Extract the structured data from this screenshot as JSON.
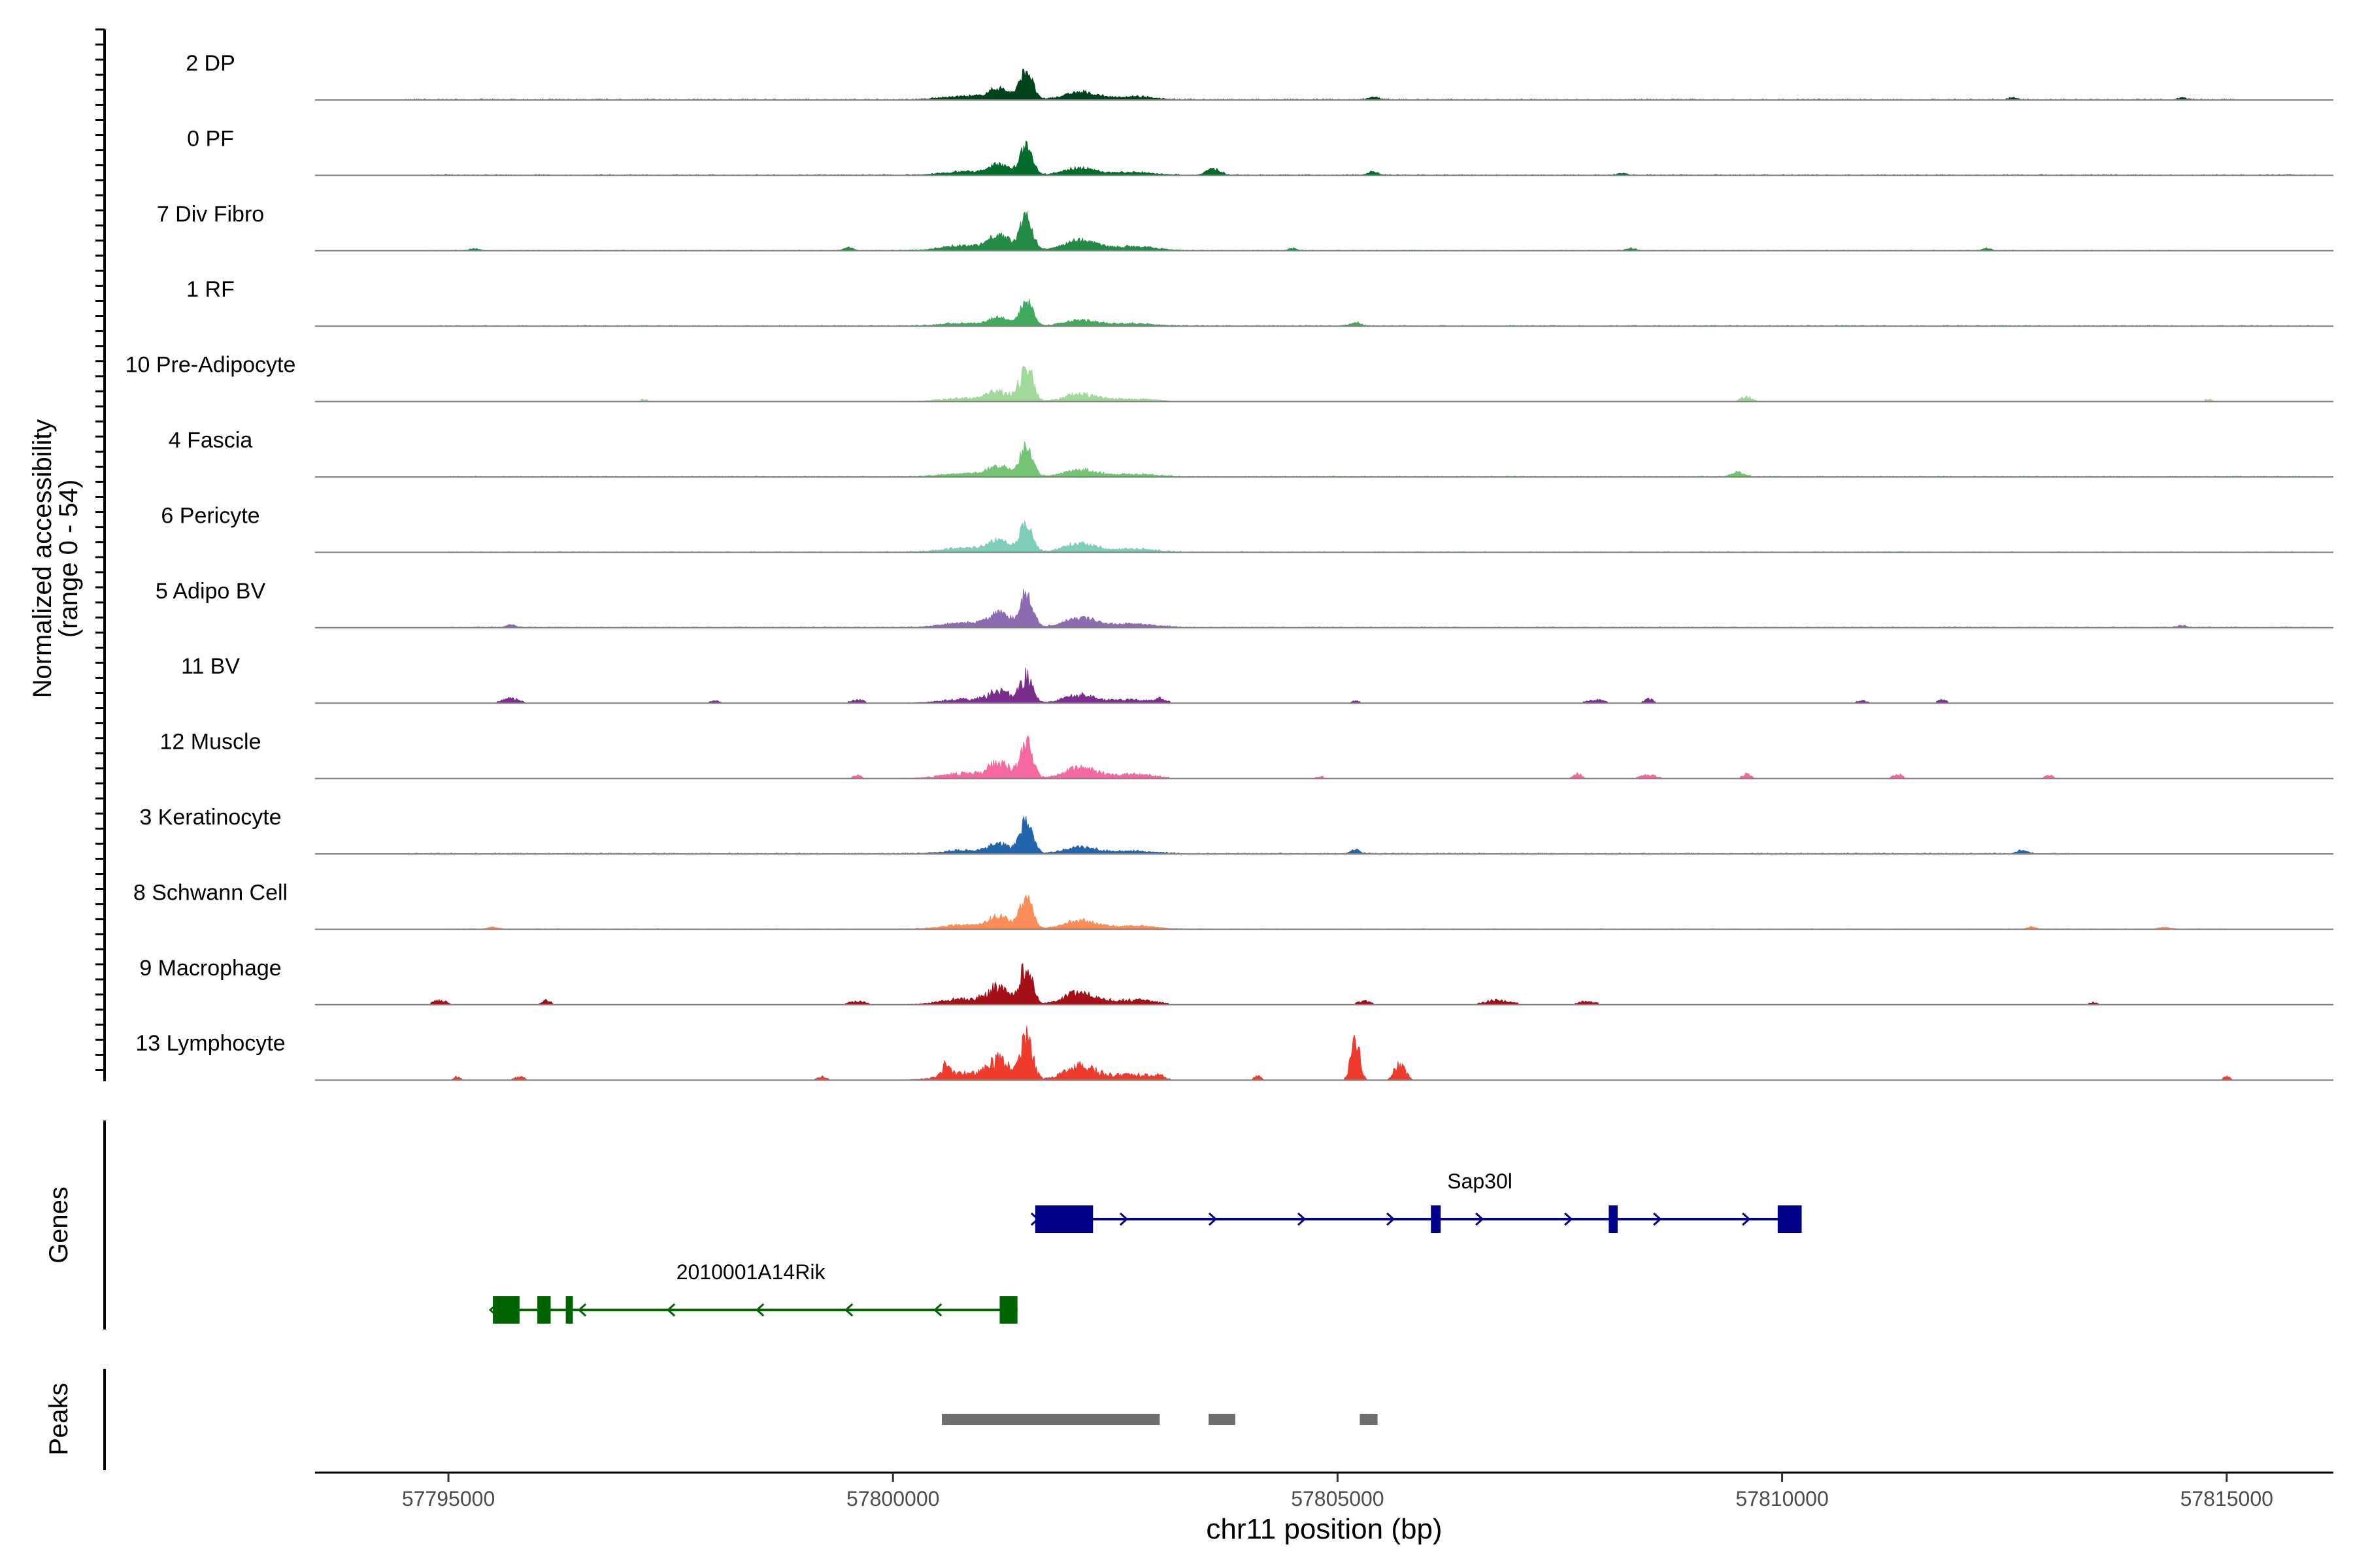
{
  "chart_data": {
    "type": "area",
    "region": {
      "chrom": "chr11",
      "start": 57793500,
      "end": 57816200
    },
    "y_axis_label": {
      "line1": "Normalized accessibility",
      "line2": "(range 0 - 54)"
    },
    "ylim": [
      0,
      54
    ],
    "x_axis": {
      "label": "chr11 position (bp)",
      "ticks": [
        {
          "value": 57795000,
          "label": "57795000"
        },
        {
          "value": 57800000,
          "label": "57800000"
        },
        {
          "value": 57805000,
          "label": "57805000"
        },
        {
          "value": 57810000,
          "label": "57810000"
        },
        {
          "value": 57815000,
          "label": "57815000"
        }
      ]
    },
    "tracks": [
      {
        "name": "2 DP",
        "color": "#00441b",
        "peak_height": 27,
        "baseline": 0.3,
        "hump_scale": 1.0,
        "sparse": false,
        "extras": [
          [
            57793500,
            57815100,
            0.3,
            0
          ],
          [
            57805400,
            120,
            2.5,
            0
          ],
          [
            57812600,
            100,
            2.0,
            0
          ],
          [
            57814500,
            100,
            2.0,
            0
          ]
        ],
        "lo": 57794500,
        "hi": 57815100
      },
      {
        "name": "0 PF",
        "color": "#006d2c",
        "peak_height": 26,
        "baseline": 0.3,
        "hump_scale": 1.0,
        "sparse": false,
        "extras": [
          [
            57803600,
            150,
            6,
            0
          ],
          [
            57805400,
            120,
            3,
            0
          ],
          [
            57808200,
            100,
            2,
            0
          ]
        ],
        "lo": 57794800,
        "hi": 57816000
      },
      {
        "name": "7 Div Fibro",
        "color": "#238b45",
        "peak_height": 30,
        "baseline": 0.2,
        "hump_scale": 1.3,
        "sparse": false,
        "extras": [
          [
            57795300,
            100,
            2,
            0
          ],
          [
            57799500,
            100,
            3,
            0
          ],
          [
            57804500,
            100,
            2,
            0
          ],
          [
            57808300,
            100,
            2,
            0
          ],
          [
            57812300,
            100,
            2,
            0
          ]
        ],
        "lo": 57794800,
        "hi": 57814800
      },
      {
        "name": "1 RF",
        "color": "#41ab5d",
        "peak_height": 23,
        "baseline": 0.3,
        "hump_scale": 0.9,
        "sparse": false,
        "extras": [
          [
            57805200,
            120,
            3,
            0
          ]
        ],
        "lo": 57794800,
        "hi": 57816000
      },
      {
        "name": "10 Pre-Adipocyte",
        "color": "#a1d99b",
        "peak_height": 32,
        "baseline": 0.15,
        "hump_scale": 0.8,
        "sparse": true,
        "extras": [
          [
            57797200,
            80,
            2,
            0
          ],
          [
            57809600,
            150,
            4,
            0
          ],
          [
            57814800,
            100,
            2,
            0
          ]
        ],
        "lo": 57797000,
        "hi": 57815000
      },
      {
        "name": "4 Fascia",
        "color": "#74c476",
        "peak_height": 28,
        "baseline": 0.3,
        "hump_scale": 0.9,
        "sparse": false,
        "extras": [
          [
            57809500,
            150,
            4,
            0
          ]
        ],
        "lo": 57795000,
        "hi": 57816000
      },
      {
        "name": "6 Pericyte",
        "color": "#7fcdbb",
        "peak_height": 26,
        "baseline": 0.3,
        "hump_scale": 1.2,
        "sparse": false,
        "extras": [],
        "lo": 57795000,
        "hi": 57816000
      },
      {
        "name": "5 Adipo BV",
        "color": "#8c6bb1",
        "peak_height": 32,
        "baseline": 0.3,
        "hump_scale": 1.1,
        "sparse": false,
        "extras": [
          [
            57795700,
            100,
            3,
            0
          ],
          [
            57814500,
            100,
            2,
            0
          ]
        ],
        "lo": 57795000,
        "hi": 57816000
      },
      {
        "name": "11 BV",
        "color": "#7b2d8d",
        "peak_height": 24,
        "baseline": 0.0,
        "hump_scale": 1.2,
        "sparse": true,
        "extras": [
          [
            57795700,
            200,
            4,
            1
          ],
          [
            57798000,
            120,
            2,
            1
          ],
          [
            57799600,
            150,
            3,
            1
          ],
          [
            57803000,
            120,
            3,
            1
          ],
          [
            57805200,
            100,
            2,
            1
          ],
          [
            57807900,
            200,
            3,
            1
          ],
          [
            57808500,
            100,
            4,
            1
          ],
          [
            57810900,
            150,
            2,
            1
          ],
          [
            57811800,
            100,
            3,
            1
          ]
        ],
        "lo": 57795000,
        "hi": 57812000
      },
      {
        "name": "12 Muscle",
        "color": "#f768a1",
        "peak_height": 30,
        "baseline": 0.0,
        "hump_scale": 1.3,
        "sparse": true,
        "extras": [
          [
            57799600,
            100,
            3,
            1
          ],
          [
            57804800,
            100,
            2,
            1
          ],
          [
            57807700,
            100,
            4,
            1
          ],
          [
            57808500,
            200,
            3,
            1
          ],
          [
            57809600,
            100,
            4,
            1
          ],
          [
            57811300,
            100,
            4,
            1
          ],
          [
            57813000,
            100,
            3,
            1
          ]
        ],
        "lo": 57799500,
        "hi": 57813200
      },
      {
        "name": "3 Keratinocyte",
        "color": "#2166ac",
        "peak_height": 30,
        "baseline": 0.3,
        "hump_scale": 0.8,
        "sparse": false,
        "extras": [
          [
            57805200,
            100,
            4,
            0
          ],
          [
            57812700,
            120,
            3,
            0
          ]
        ],
        "lo": 57794500,
        "hi": 57813300
      },
      {
        "name": "8 Schwann Cell",
        "color": "#fc8d59",
        "peak_height": 29,
        "baseline": 0.2,
        "hump_scale": 1.1,
        "sparse": false,
        "extras": [
          [
            57795500,
            100,
            2,
            0
          ],
          [
            57812800,
            100,
            2,
            0
          ],
          [
            57814300,
            120,
            2,
            0
          ]
        ],
        "lo": 57795000,
        "hi": 57815000
      },
      {
        "name": "9 Macrophage",
        "color": "#a50f15",
        "peak_height": 34,
        "baseline": 0.0,
        "hump_scale": 1.3,
        "sparse": true,
        "extras": [
          [
            57794900,
            150,
            4,
            1
          ],
          [
            57796100,
            100,
            4,
            1
          ],
          [
            57799600,
            200,
            3,
            1
          ],
          [
            57805300,
            150,
            3,
            1
          ],
          [
            57806800,
            300,
            4,
            1
          ],
          [
            57807800,
            200,
            3,
            1
          ],
          [
            57813500,
            120,
            2,
            1
          ]
        ],
        "lo": 57794800,
        "hi": 57813600
      },
      {
        "name": "13 Lymphocyte",
        "color": "#ef3b2c",
        "peak_height": 36,
        "baseline": 0.0,
        "hump_scale": 1.4,
        "sparse": true,
        "extras": [
          [
            57795100,
            80,
            3,
            1
          ],
          [
            57795800,
            120,
            3,
            1
          ],
          [
            57799200,
            120,
            3,
            1
          ],
          [
            57800600,
            80,
            12,
            1
          ],
          [
            57803000,
            60,
            4,
            1
          ],
          [
            57804100,
            80,
            4,
            1
          ],
          [
            57805200,
            100,
            36,
            1
          ],
          [
            57805700,
            120,
            16,
            1
          ],
          [
            57815000,
            80,
            3,
            1
          ]
        ],
        "lo": 57795000,
        "hi": 57815100
      }
    ],
    "genes_track_label": "Genes",
    "genes": [
      {
        "name": "Sap30l",
        "strand": "+",
        "color": "#00008b",
        "start": 57801600,
        "end": 57810200,
        "exons": [
          [
            57801600,
            57802250
          ],
          [
            57806050,
            57806160
          ],
          [
            57808050,
            57808150
          ],
          [
            57809950,
            57810220
          ]
        ]
      },
      {
        "name": "2010001A14Rik",
        "strand": "-",
        "color": "#006400",
        "start": 57795500,
        "end": 57801400,
        "exons": [
          [
            57795500,
            57795800
          ],
          [
            57796000,
            57796150
          ],
          [
            57796320,
            57796400
          ],
          [
            57801200,
            57801400
          ]
        ]
      }
    ],
    "peaks_track_label": "Peaks",
    "peaks": [
      {
        "start": 57800550,
        "end": 57803000
      },
      {
        "start": 57803550,
        "end": 57803850
      },
      {
        "start": 57805250,
        "end": 57805450
      }
    ],
    "peaks_color": "#6e6e6e"
  }
}
